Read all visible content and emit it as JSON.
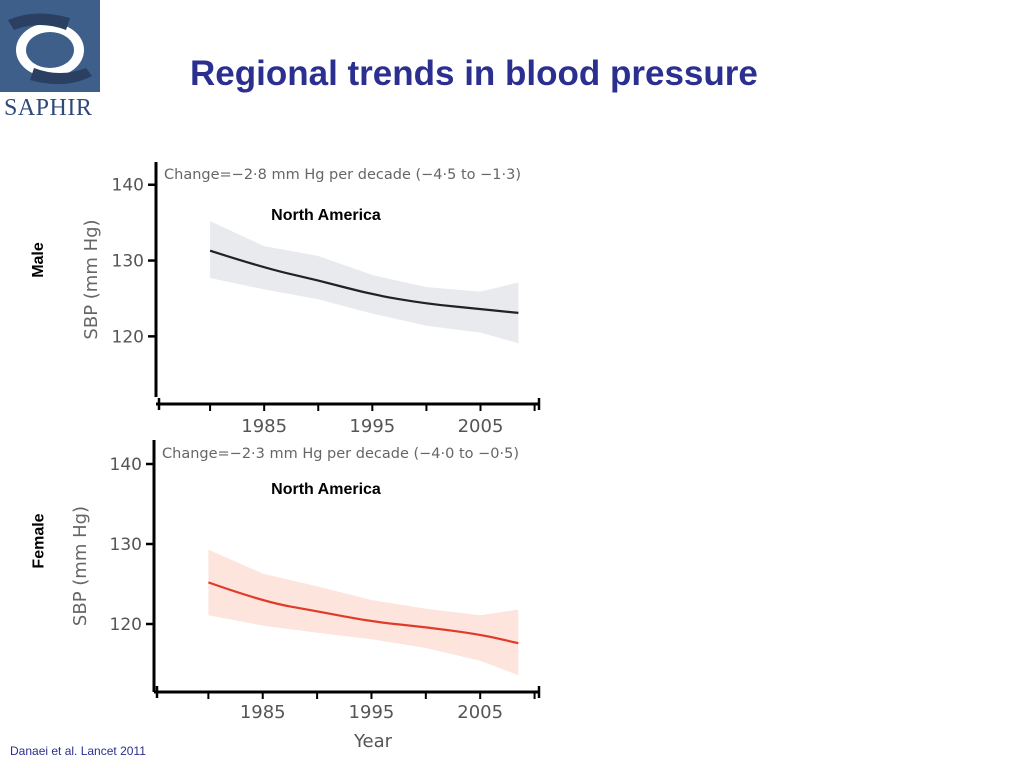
{
  "logo": {
    "text": "SAPHIR",
    "colors": {
      "primary": "#3e5f8a",
      "secondary": "#2a3f62"
    }
  },
  "title": "Regional trends in blood pressure",
  "citation": "Danaei et al. Lancet 2011",
  "chart_data": [
    {
      "type": "line",
      "panel_label": "Male",
      "annotation": "Change=−2·8 mm Hg per decade (−4·5 to −1·3)",
      "region": "North America",
      "ylabel": "SBP (mm Hg)",
      "xlabel": "",
      "yticks": [
        "120",
        "130",
        "140"
      ],
      "xticks": [
        "1985",
        "1995",
        "2005"
      ],
      "ylim": [
        112,
        143
      ],
      "xlim": [
        1975,
        2010.5
      ],
      "line_color": "#222222",
      "band_color": "#e8eaee",
      "series": [
        {
          "x": [
            1980,
            1985,
            1990,
            1995,
            2000,
            2005,
            2008.5
          ],
          "y": [
            131.3,
            129.0,
            127.4,
            125.5,
            124.3,
            123.6,
            123.1
          ],
          "lower": [
            127.7,
            126.2,
            124.9,
            123.0,
            121.4,
            120.5,
            119.1
          ],
          "upper": [
            135.2,
            131.9,
            130.6,
            128.1,
            126.5,
            125.9,
            127.1
          ]
        }
      ]
    },
    {
      "type": "line",
      "panel_label": "Female",
      "annotation": "Change=−2·3 mm Hg per decade (−4·0 to −0·5)",
      "region": "North America",
      "ylabel": "SBP (mm Hg)",
      "xlabel": "Year",
      "yticks": [
        "120",
        "130",
        "140"
      ],
      "xticks": [
        "1985",
        "1995",
        "2005"
      ],
      "ylim": [
        111.5,
        143
      ],
      "xlim": [
        1975,
        2010.5
      ],
      "line_color": "#e03a2a",
      "band_color": "#fde4dc",
      "series": [
        {
          "x": [
            1980,
            1985,
            1990,
            1995,
            2000,
            2005,
            2008.5
          ],
          "y": [
            125.2,
            122.8,
            121.6,
            120.3,
            119.6,
            118.7,
            117.6
          ],
          "lower": [
            121.1,
            119.8,
            118.9,
            118.1,
            117.0,
            115.4,
            113.6
          ],
          "upper": [
            129.3,
            126.3,
            124.7,
            123.0,
            121.9,
            121.1,
            121.8
          ]
        }
      ]
    }
  ]
}
